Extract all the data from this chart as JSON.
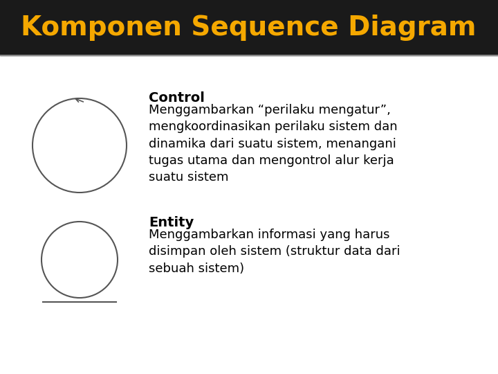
{
  "title": "Komponen Sequence Diagram",
  "title_color": "#F5A800",
  "title_fontsize": 28,
  "bg_color": "#1a1a1a",
  "content_bg": "#ffffff",
  "header_line_color": "#888888",
  "control_label": "Control",
  "control_text": "Menggambarkan “perilaku mengatur”,\nmengkoordinasikan perilaku sistem dan\ndinamika dari suatu sistem, menangani\ntugas utama dan mengontrol alur kerja\nsuatu sistem",
  "entity_label": "Entity",
  "entity_text": "Menggambarkan informasi yang harus\ndisimpan oleh sistem (struktur data dari\nsebuah sistem)",
  "text_fontsize": 13,
  "label_fontsize": 14
}
